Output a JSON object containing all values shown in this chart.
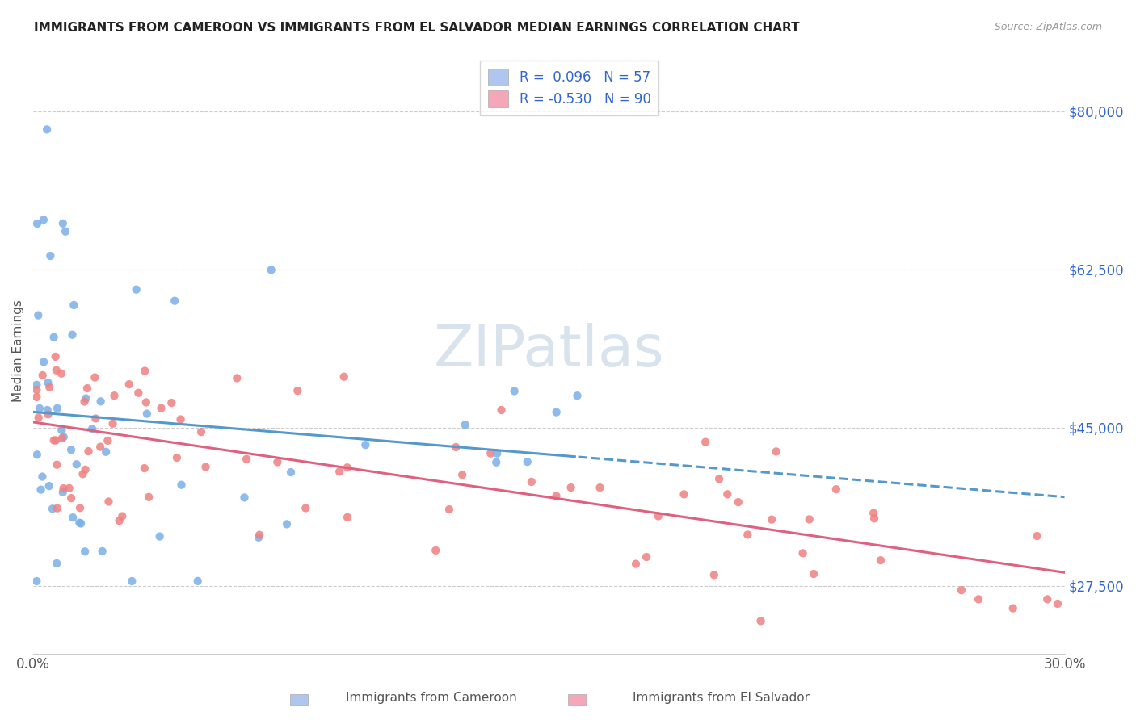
{
  "title": "IMMIGRANTS FROM CAMEROON VS IMMIGRANTS FROM EL SALVADOR MEDIAN EARNINGS CORRELATION CHART",
  "source": "Source: ZipAtlas.com",
  "ylabel": "Median Earnings",
  "yticks": [
    27500,
    45000,
    62500,
    80000
  ],
  "ytick_labels": [
    "$27,500",
    "$45,000",
    "$62,500",
    "$80,000"
  ],
  "xmin": 0.0,
  "xmax": 0.3,
  "ymin": 20000,
  "ymax": 87000,
  "cameroon_color": "#7ab0e8",
  "elsalvador_color": "#f08080",
  "trend_cameroon_color": "#5599cc",
  "trend_elsalvador_color": "#e06080",
  "legend_blue_face": "#aec6f0",
  "legend_pink_face": "#f4a7b9",
  "legend_text_color": "#3366cc",
  "watermark_color": "#c8d8e8",
  "R_cameroon": 0.096,
  "N_cameroon": 57,
  "R_elsalvador": -0.53,
  "N_elsalvador": 90
}
